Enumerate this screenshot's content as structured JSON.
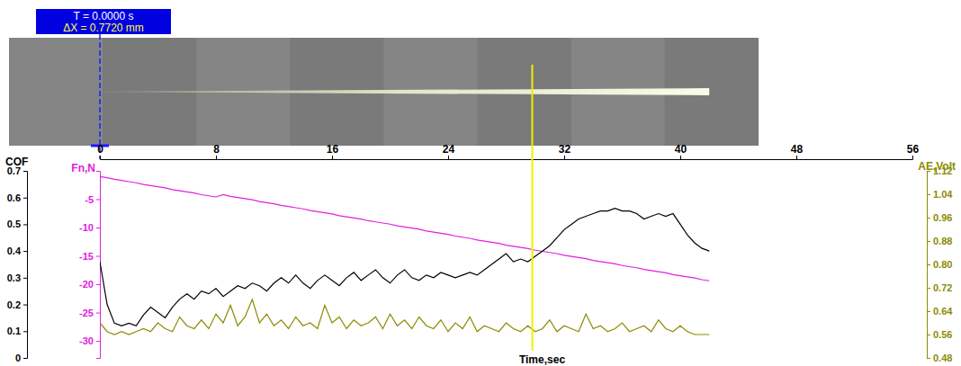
{
  "chart_data": {
    "type": "line",
    "x_label": "Time,sec",
    "x": [
      0,
      0.5,
      1,
      1.5,
      2,
      2.5,
      3,
      3.5,
      4,
      4.5,
      5,
      5.5,
      6,
      6.5,
      7,
      7.5,
      8,
      8.5,
      9,
      9.5,
      10,
      10.5,
      11,
      11.5,
      12,
      12.5,
      13,
      13.5,
      14,
      14.5,
      15,
      15.5,
      16,
      16.5,
      17,
      17.5,
      18,
      18.5,
      19,
      19.5,
      20,
      20.5,
      21,
      21.5,
      22,
      22.5,
      23,
      23.5,
      24,
      24.5,
      25,
      25.5,
      26,
      26.5,
      27,
      27.5,
      28,
      28.5,
      29,
      29.5,
      30,
      30.5,
      31,
      31.5,
      32,
      32.5,
      33,
      33.5,
      34,
      34.5,
      35,
      35.5,
      36,
      36.5,
      37,
      37.5,
      38,
      38.5,
      39,
      39.5,
      40,
      40.5,
      41,
      41.5,
      42
    ],
    "xlim": [
      0,
      56
    ],
    "xticks": [
      0,
      8,
      16,
      24,
      32,
      40,
      48,
      56
    ],
    "ylim": [
      0,
      0.7
    ],
    "yticks": [
      0,
      0.1,
      0.2,
      0.3,
      0.4,
      0.5,
      0.6,
      0.7
    ],
    "y2lim": [
      -33,
      0
    ],
    "y2ticks": [
      -30,
      -25,
      -20,
      -15,
      -10,
      -5
    ],
    "y3lim": [
      0.48,
      1.12
    ],
    "y3ticks": [
      0.48,
      0.56,
      0.64,
      0.72,
      {
        "value": 0.8,
        "label": "0.80"
      },
      0.88,
      0.96,
      1.04,
      1.12
    ],
    "series": [
      {
        "name": "COF",
        "color": "#000000",
        "axis": "y",
        "values": [
          0.36,
          0.2,
          0.13,
          0.12,
          0.13,
          0.12,
          0.16,
          0.19,
          0.17,
          0.15,
          0.19,
          0.22,
          0.24,
          0.22,
          0.25,
          0.24,
          0.26,
          0.23,
          0.25,
          0.27,
          0.26,
          0.28,
          0.27,
          0.25,
          0.28,
          0.3,
          0.28,
          0.31,
          0.28,
          0.26,
          0.29,
          0.31,
          0.29,
          0.27,
          0.3,
          0.32,
          0.29,
          0.31,
          0.33,
          0.3,
          0.28,
          0.31,
          0.33,
          0.3,
          0.29,
          0.31,
          0.3,
          0.32,
          0.31,
          0.3,
          0.31,
          0.32,
          0.31,
          0.33,
          0.35,
          0.37,
          0.39,
          0.36,
          0.37,
          0.36,
          0.38,
          0.4,
          0.42,
          0.45,
          0.48,
          0.5,
          0.52,
          0.53,
          0.54,
          0.55,
          0.55,
          0.56,
          0.55,
          0.55,
          0.54,
          0.52,
          0.53,
          0.54,
          0.53,
          0.54,
          0.5,
          0.46,
          0.43,
          0.41,
          0.4
        ]
      },
      {
        "name": "Fn,N",
        "color": "#e020e0",
        "axis": "y2",
        "values": [
          -1.0,
          -1.2,
          -1.5,
          -1.7,
          -1.9,
          -2.1,
          -2.4,
          -2.6,
          -2.8,
          -3.0,
          -3.3,
          -3.5,
          -3.7,
          -3.9,
          -4.2,
          -4.4,
          -4.6,
          -4.2,
          -4.5,
          -4.7,
          -4.9,
          -5.1,
          -5.4,
          -5.6,
          -5.8,
          -6.1,
          -6.3,
          -6.5,
          -6.7,
          -7.0,
          -7.2,
          -7.4,
          -7.6,
          -7.9,
          -8.1,
          -8.3,
          -8.5,
          -8.8,
          -9.0,
          -9.2,
          -9.4,
          -9.7,
          -9.9,
          -10.1,
          -10.3,
          -10.6,
          -10.8,
          -11.0,
          -11.2,
          -11.5,
          -11.7,
          -11.9,
          -12.2,
          -12.4,
          -12.6,
          -12.8,
          -13.1,
          -13.3,
          -13.5,
          -13.7,
          -14.0,
          -14.2,
          -14.4,
          -14.6,
          -14.9,
          -15.1,
          -15.3,
          -15.5,
          -15.8,
          -16.0,
          -16.2,
          -16.4,
          -16.7,
          -16.9,
          -17.1,
          -17.4,
          -17.6,
          -17.8,
          -18.0,
          -18.3,
          -18.5,
          -18.7,
          -18.9,
          -19.2,
          -19.4
        ]
      },
      {
        "name": "AE,Volt",
        "color": "#8b8b00",
        "axis": "y3",
        "values": [
          0.6,
          0.57,
          0.56,
          0.57,
          0.56,
          0.57,
          0.58,
          0.57,
          0.6,
          0.58,
          0.57,
          0.62,
          0.59,
          0.58,
          0.61,
          0.58,
          0.63,
          0.6,
          0.66,
          0.59,
          0.62,
          0.68,
          0.6,
          0.63,
          0.59,
          0.61,
          0.58,
          0.62,
          0.59,
          0.6,
          0.58,
          0.66,
          0.6,
          0.62,
          0.58,
          0.61,
          0.59,
          0.6,
          0.62,
          0.58,
          0.63,
          0.59,
          0.61,
          0.58,
          0.62,
          0.59,
          0.58,
          0.61,
          0.57,
          0.6,
          0.58,
          0.62,
          0.57,
          0.59,
          0.58,
          0.57,
          0.6,
          0.58,
          0.57,
          0.59,
          0.57,
          0.58,
          0.61,
          0.57,
          0.59,
          0.58,
          0.57,
          0.63,
          0.58,
          0.59,
          0.57,
          0.58,
          0.6,
          0.57,
          0.58,
          0.59,
          0.57,
          0.61,
          0.58,
          0.57,
          0.59,
          0.57,
          0.56,
          0.56,
          0.56
        ]
      }
    ],
    "cursor": {
      "x": 0,
      "time_label": "T = 0.0000 s",
      "distance_label": "ΔX = 0.7720 mm"
    },
    "marker_x": 29.8
  }
}
